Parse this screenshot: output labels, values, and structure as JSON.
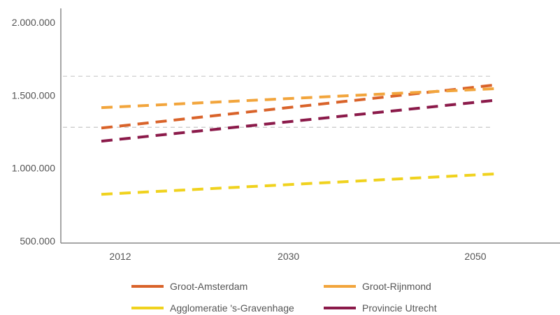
{
  "chart_data": {
    "type": "line",
    "title": "",
    "xlabel": "",
    "ylabel": "",
    "x": [
      2012,
      2050
    ],
    "x_ticks": [
      "2012",
      "2030",
      "2050"
    ],
    "y_ticks": [
      "500.000",
      "1.000.000",
      "1.500.000",
      "2.000.000"
    ],
    "ylim": [
      500000,
      2000000
    ],
    "grid": "dashed reference lines at about 1.280.000 and 1.630.000",
    "reference_lines": [
      1280000,
      1630000
    ],
    "legend_position": "bottom",
    "series": [
      {
        "name": "Groot-Amsterdam",
        "values": [
          1275000,
          1570000
        ],
        "color": "#d9632a"
      },
      {
        "name": "Groot-Rijnmond",
        "values": [
          1415000,
          1545000
        ],
        "color": "#f2a53c"
      },
      {
        "name": "Agglomeratie 's-Gravenhage",
        "values": [
          820000,
          960000
        ],
        "color": "#f0d21e"
      },
      {
        "name": "Provincie Utrecht",
        "values": [
          1185000,
          1465000
        ],
        "color": "#8b1a4a"
      }
    ]
  }
}
